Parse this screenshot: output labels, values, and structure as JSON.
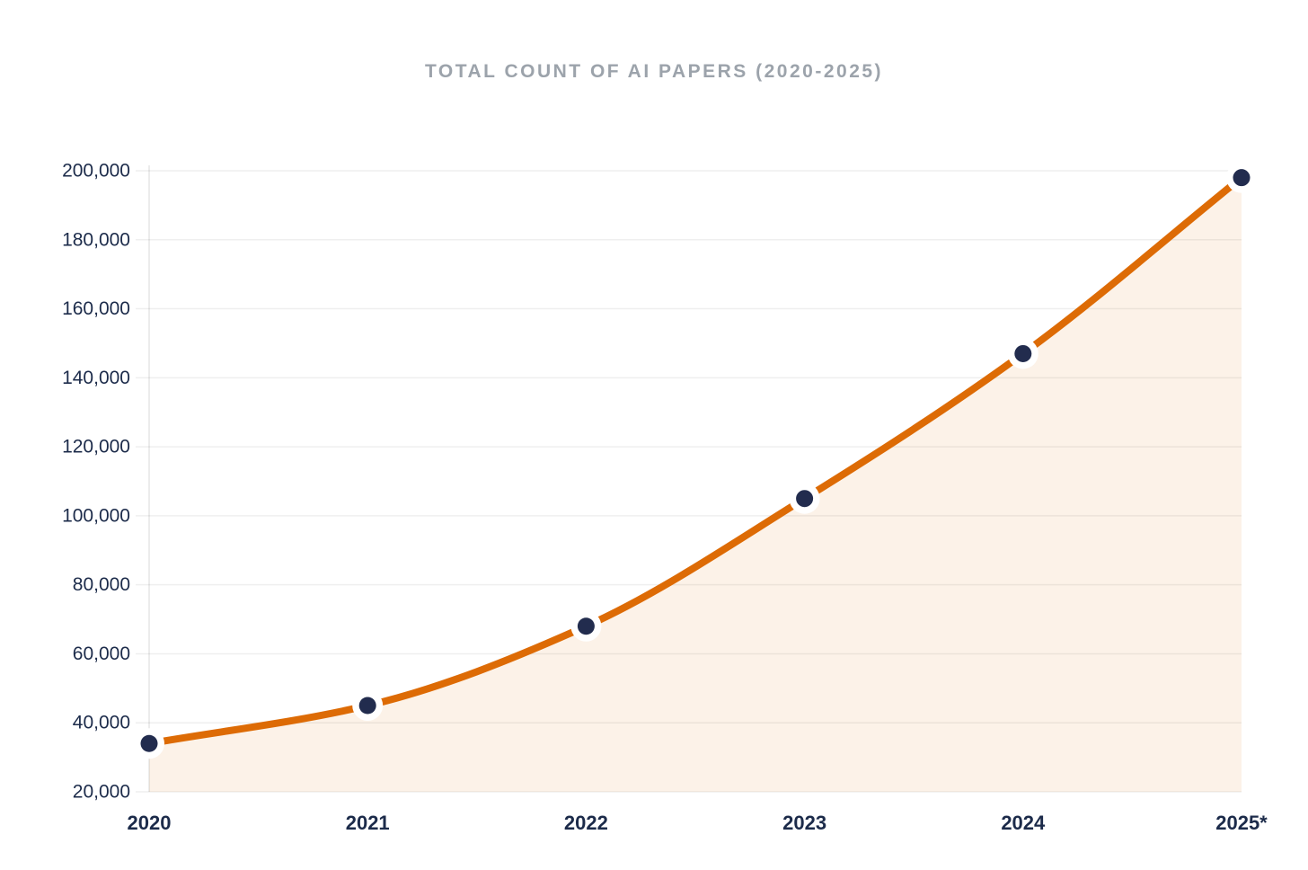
{
  "title": "TOTAL COUNT OF AI PAPERS (2020-2025)",
  "chart_data": {
    "type": "line",
    "title": "TOTAL COUNT OF AI PAPERS (2020-2025)",
    "categories": [
      "2020",
      "2021",
      "2022",
      "2023",
      "2024",
      "2025*"
    ],
    "series": [
      {
        "name": "Total count of AI papers",
        "values": [
          34000,
          45000,
          68000,
          105000,
          147000,
          198000
        ]
      }
    ],
    "xlabel": "",
    "ylabel": "",
    "ylim": [
      20000,
      200000
    ],
    "y_ticks": [
      {
        "value": 20000,
        "label": "20,000"
      },
      {
        "value": 40000,
        "label": "40,000"
      },
      {
        "value": 60000,
        "label": "60,000"
      },
      {
        "value": 80000,
        "label": "80,000"
      },
      {
        "value": 100000,
        "label": "100,000"
      },
      {
        "value": 120000,
        "label": "120,000"
      },
      {
        "value": 140000,
        "label": "140,000"
      },
      {
        "value": 160000,
        "label": "160,000"
      },
      {
        "value": 180000,
        "label": "180,000"
      },
      {
        "value": 200000,
        "label": "200,000"
      }
    ],
    "grid": true,
    "legend": false,
    "area_fill": true,
    "curve": "monotone"
  },
  "colors": {
    "line": "#DD6B05",
    "point": "#222C4E",
    "point_halo": "#FFFFFF",
    "area_fill": "#DD6B05",
    "area_fill_opacity": "0.09",
    "gridline": "rgba(40,40,40,0.075)",
    "axis_line": "rgba(40,40,40,0.12)",
    "tick_label": "#1C2B4A",
    "title": "#9CA3AB"
  }
}
